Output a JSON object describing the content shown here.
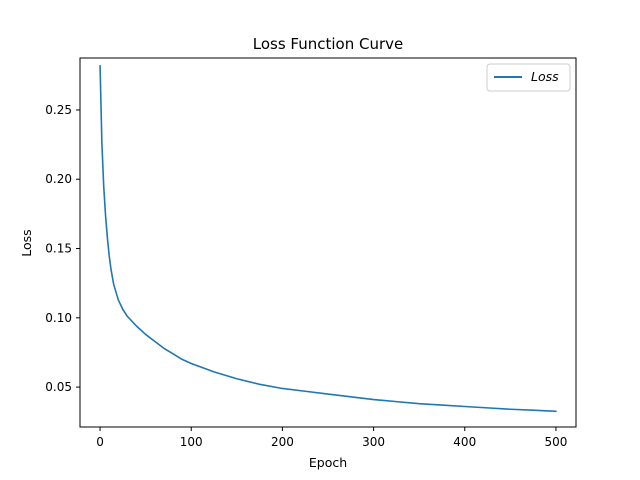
{
  "chart_data": {
    "type": "line",
    "title": "Loss Function Curve",
    "xlabel": "Epoch",
    "ylabel": "Loss",
    "xlim": [
      -22,
      522
    ],
    "ylim": [
      0.0212,
      0.2875
    ],
    "xticks": [
      0,
      100,
      200,
      300,
      400,
      500
    ],
    "xtick_labels": [
      "0",
      "100",
      "200",
      "300",
      "400",
      "500"
    ],
    "yticks": [
      0.05,
      0.1,
      0.15,
      0.2,
      0.25
    ],
    "ytick_labels": [
      "0.05",
      "0.10",
      "0.15",
      "0.20",
      "0.25"
    ],
    "grid": false,
    "legend_position": "top-right",
    "series": [
      {
        "name": "Loss",
        "color": "#1f77b4",
        "x": [
          0,
          2,
          4,
          6,
          8,
          10,
          12,
          15,
          20,
          25,
          30,
          40,
          50,
          60,
          70,
          80,
          90,
          100,
          125,
          150,
          175,
          200,
          225,
          250,
          275,
          300,
          325,
          350,
          375,
          400,
          425,
          450,
          475,
          500
        ],
        "y": [
          0.282,
          0.226,
          0.195,
          0.174,
          0.158,
          0.145,
          0.135,
          0.124,
          0.113,
          0.106,
          0.101,
          0.094,
          0.088,
          0.083,
          0.078,
          0.074,
          0.07,
          0.067,
          0.061,
          0.056,
          0.052,
          0.049,
          0.047,
          0.045,
          0.043,
          0.041,
          0.0395,
          0.038,
          0.037,
          0.036,
          0.035,
          0.034,
          0.0333,
          0.0325
        ]
      }
    ]
  }
}
